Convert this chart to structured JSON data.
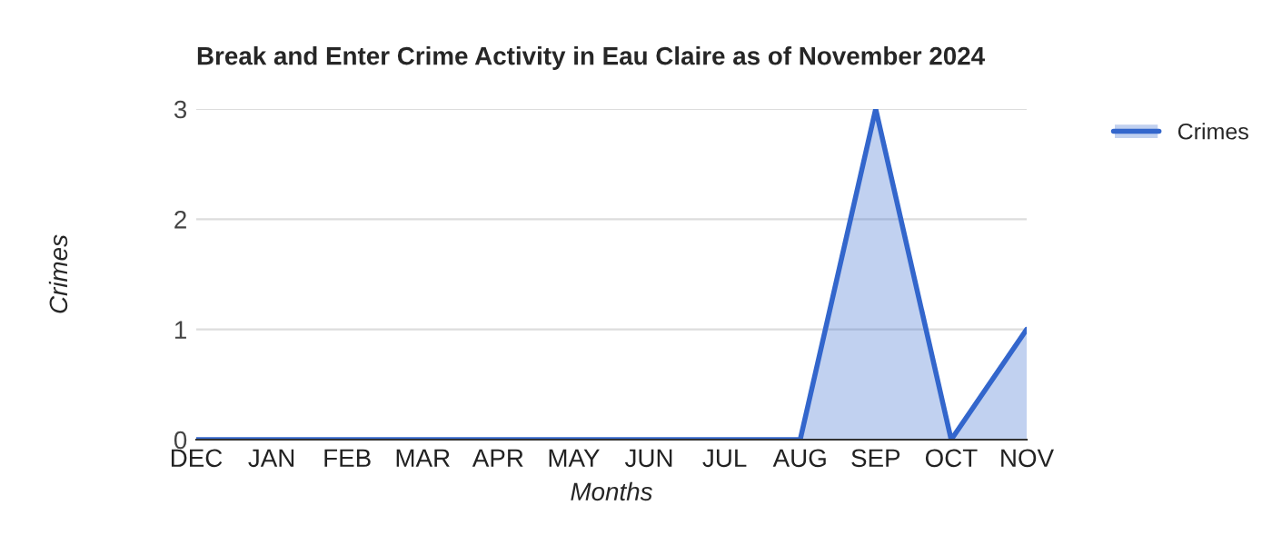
{
  "chart_data": {
    "type": "area",
    "title": "Break and Enter Crime Activity in Eau Claire as of November 2024",
    "xlabel": "Months",
    "ylabel": "Crimes",
    "categories": [
      "DEC",
      "JAN",
      "FEB",
      "MAR",
      "APR",
      "MAY",
      "JUN",
      "JUL",
      "AUG",
      "SEP",
      "OCT",
      "NOV"
    ],
    "series": [
      {
        "name": "Crimes",
        "color": "#3366cc",
        "values": [
          0,
          0,
          0,
          0,
          0,
          0,
          0,
          0,
          0,
          3,
          0,
          1
        ]
      }
    ],
    "ylim": [
      0,
      3
    ],
    "yticks": [
      0,
      1,
      2,
      3
    ],
    "grid": "y",
    "legend": "right",
    "marker": "none",
    "line_style": "solid"
  }
}
